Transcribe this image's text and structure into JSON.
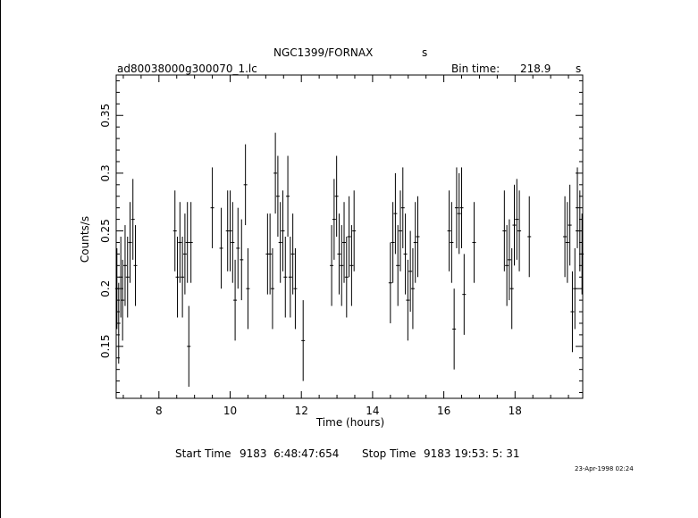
{
  "chart_data": {
    "type": "scatter",
    "title": "NGC1399/FORNAX",
    "title_suffix": "s",
    "subtitle": "ad80038000g300070_1.lc",
    "bin_time_label": "Bin time:",
    "bin_time_value": "218.9",
    "bin_time_unit": "s",
    "xlabel": "Time (hours)",
    "ylabel": "Counts/s",
    "xlim": [
      6.8,
      19.9
    ],
    "ylim": [
      0.105,
      0.385
    ],
    "xticks": [
      8,
      10,
      12,
      14,
      16,
      18
    ],
    "yticks": [
      0.15,
      0.2,
      0.25,
      0.3,
      0.35
    ],
    "xtick_labels": [
      "8",
      "10",
      "12",
      "14",
      "16",
      "18"
    ],
    "ytick_labels": [
      "0.15",
      "0.2",
      "0.25",
      "0.3",
      "0.35"
    ],
    "grid": false,
    "legend": "none",
    "error_bars": true,
    "points": [
      {
        "x": 6.82,
        "y": 0.2,
        "err": 0.035
      },
      {
        "x": 6.87,
        "y": 0.17,
        "err": 0.035
      },
      {
        "x": 6.93,
        "y": 0.21,
        "err": 0.035
      },
      {
        "x": 6.98,
        "y": 0.19,
        "err": 0.035
      },
      {
        "x": 7.05,
        "y": 0.22,
        "err": 0.035
      },
      {
        "x": 7.12,
        "y": 0.21,
        "err": 0.035
      },
      {
        "x": 7.19,
        "y": 0.24,
        "err": 0.035
      },
      {
        "x": 7.27,
        "y": 0.26,
        "err": 0.035
      },
      {
        "x": 7.34,
        "y": 0.22,
        "err": 0.035
      },
      {
        "x": 8.45,
        "y": 0.25,
        "err": 0.035
      },
      {
        "x": 8.52,
        "y": 0.21,
        "err": 0.035
      },
      {
        "x": 8.59,
        "y": 0.24,
        "err": 0.035
      },
      {
        "x": 8.66,
        "y": 0.21,
        "err": 0.035
      },
      {
        "x": 8.73,
        "y": 0.23,
        "err": 0.035
      },
      {
        "x": 8.8,
        "y": 0.24,
        "err": 0.035
      },
      {
        "x": 8.84,
        "y": 0.15,
        "err": 0.035
      },
      {
        "x": 8.9,
        "y": 0.24,
        "err": 0.035
      },
      {
        "x": 9.5,
        "y": 0.27,
        "err": 0.035
      },
      {
        "x": 9.75,
        "y": 0.235,
        "err": 0.035
      },
      {
        "x": 9.93,
        "y": 0.25,
        "err": 0.035
      },
      {
        "x": 10.0,
        "y": 0.25,
        "err": 0.035
      },
      {
        "x": 10.07,
        "y": 0.24,
        "err": 0.035
      },
      {
        "x": 10.14,
        "y": 0.19,
        "err": 0.035
      },
      {
        "x": 10.22,
        "y": 0.235,
        "err": 0.035
      },
      {
        "x": 10.32,
        "y": 0.225,
        "err": 0.035
      },
      {
        "x": 10.43,
        "y": 0.29,
        "err": 0.035
      },
      {
        "x": 10.5,
        "y": 0.2,
        "err": 0.035
      },
      {
        "x": 11.05,
        "y": 0.23,
        "err": 0.035
      },
      {
        "x": 11.12,
        "y": 0.23,
        "err": 0.035
      },
      {
        "x": 11.19,
        "y": 0.2,
        "err": 0.035
      },
      {
        "x": 11.27,
        "y": 0.3,
        "err": 0.035
      },
      {
        "x": 11.34,
        "y": 0.28,
        "err": 0.035
      },
      {
        "x": 11.41,
        "y": 0.24,
        "err": 0.035
      },
      {
        "x": 11.48,
        "y": 0.25,
        "err": 0.035
      },
      {
        "x": 11.55,
        "y": 0.21,
        "err": 0.035
      },
      {
        "x": 11.62,
        "y": 0.28,
        "err": 0.035
      },
      {
        "x": 11.69,
        "y": 0.21,
        "err": 0.035
      },
      {
        "x": 11.76,
        "y": 0.23,
        "err": 0.035
      },
      {
        "x": 11.83,
        "y": 0.2,
        "err": 0.035
      },
      {
        "x": 12.05,
        "y": 0.155,
        "err": 0.035
      },
      {
        "x": 12.85,
        "y": 0.22,
        "err": 0.035
      },
      {
        "x": 12.92,
        "y": 0.26,
        "err": 0.035
      },
      {
        "x": 12.99,
        "y": 0.28,
        "err": 0.035
      },
      {
        "x": 13.06,
        "y": 0.23,
        "err": 0.035
      },
      {
        "x": 13.13,
        "y": 0.22,
        "err": 0.035
      },
      {
        "x": 13.2,
        "y": 0.24,
        "err": 0.035
      },
      {
        "x": 13.27,
        "y": 0.21,
        "err": 0.035
      },
      {
        "x": 13.34,
        "y": 0.245,
        "err": 0.035
      },
      {
        "x": 13.41,
        "y": 0.22,
        "err": 0.035
      },
      {
        "x": 13.48,
        "y": 0.25,
        "err": 0.035
      },
      {
        "x": 14.5,
        "y": 0.205,
        "err": 0.035
      },
      {
        "x": 14.57,
        "y": 0.24,
        "err": 0.035
      },
      {
        "x": 14.64,
        "y": 0.265,
        "err": 0.035
      },
      {
        "x": 14.71,
        "y": 0.22,
        "err": 0.035
      },
      {
        "x": 14.78,
        "y": 0.25,
        "err": 0.035
      },
      {
        "x": 14.85,
        "y": 0.27,
        "err": 0.035
      },
      {
        "x": 14.92,
        "y": 0.23,
        "err": 0.035
      },
      {
        "x": 14.99,
        "y": 0.19,
        "err": 0.035
      },
      {
        "x": 15.06,
        "y": 0.215,
        "err": 0.035
      },
      {
        "x": 15.13,
        "y": 0.2,
        "err": 0.035
      },
      {
        "x": 15.2,
        "y": 0.24,
        "err": 0.035
      },
      {
        "x": 15.27,
        "y": 0.245,
        "err": 0.035
      },
      {
        "x": 16.15,
        "y": 0.25,
        "err": 0.035
      },
      {
        "x": 16.22,
        "y": 0.24,
        "err": 0.035
      },
      {
        "x": 16.29,
        "y": 0.165,
        "err": 0.035
      },
      {
        "x": 16.36,
        "y": 0.27,
        "err": 0.035
      },
      {
        "x": 16.43,
        "y": 0.265,
        "err": 0.035
      },
      {
        "x": 16.5,
        "y": 0.27,
        "err": 0.035
      },
      {
        "x": 16.57,
        "y": 0.195,
        "err": 0.035
      },
      {
        "x": 16.85,
        "y": 0.24,
        "err": 0.035
      },
      {
        "x": 17.7,
        "y": 0.25,
        "err": 0.035
      },
      {
        "x": 17.77,
        "y": 0.22,
        "err": 0.035
      },
      {
        "x": 17.84,
        "y": 0.225,
        "err": 0.035
      },
      {
        "x": 17.91,
        "y": 0.2,
        "err": 0.035
      },
      {
        "x": 17.98,
        "y": 0.255,
        "err": 0.035
      },
      {
        "x": 18.05,
        "y": 0.26,
        "err": 0.035
      },
      {
        "x": 18.12,
        "y": 0.25,
        "err": 0.035
      },
      {
        "x": 18.4,
        "y": 0.245,
        "err": 0.035
      },
      {
        "x": 19.4,
        "y": 0.245,
        "err": 0.035
      },
      {
        "x": 19.47,
        "y": 0.24,
        "err": 0.035
      },
      {
        "x": 19.54,
        "y": 0.255,
        "err": 0.035
      },
      {
        "x": 19.61,
        "y": 0.18,
        "err": 0.035
      },
      {
        "x": 19.68,
        "y": 0.2,
        "err": 0.035
      },
      {
        "x": 19.75,
        "y": 0.27,
        "err": 0.035
      },
      {
        "x": 19.82,
        "y": 0.25,
        "err": 0.035
      },
      {
        "x": 19.88,
        "y": 0.23,
        "err": 0.035
      }
    ]
  },
  "footer": {
    "start_label": "Start Time",
    "start_value": "9183  6:48:47:654",
    "stop_label": "Stop Time",
    "stop_value": "9183 19:53: 5: 31",
    "date_stamp": "23-Apr-1998 02:24"
  }
}
